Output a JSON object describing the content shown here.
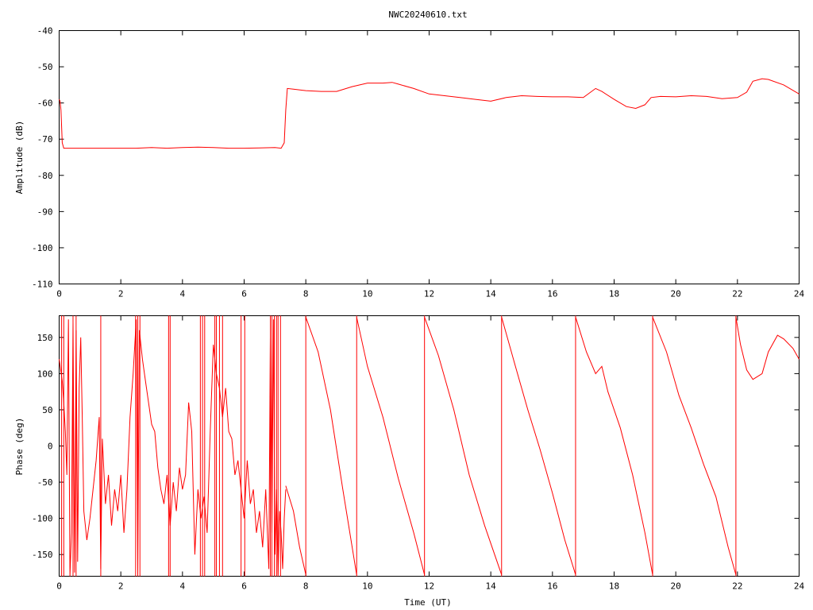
{
  "title": "NWC20240610.txt",
  "colors": {
    "trace": "#ff0000",
    "frame": "#000000",
    "background": "#ffffff"
  },
  "chart_data": [
    {
      "type": "line",
      "title": "NWC20240610.txt",
      "xlabel": "",
      "ylabel": "Amplitude (dB)",
      "xlim": [
        0,
        24
      ],
      "ylim": [
        -110,
        -40
      ],
      "xticks": [
        "0",
        "2",
        "4",
        "6",
        "8",
        "10",
        "12",
        "14",
        "16",
        "18",
        "20",
        "22",
        "24"
      ],
      "yticks": [
        "-40",
        "-50",
        "-60",
        "-70",
        "-80",
        "-90",
        "-100",
        "-110"
      ],
      "grid": false,
      "series": [
        {
          "x": [
            0,
            0.03,
            0.06,
            0.1,
            0.15,
            0.5,
            1,
            1.5,
            2,
            2.5,
            3,
            3.5,
            4,
            4.5,
            5,
            5.5,
            6,
            6.5,
            7,
            7.2,
            7.3,
            7.35,
            7.4,
            7.6,
            8,
            8.5,
            9,
            9.5,
            10,
            10.5,
            10.8,
            11,
            11.5,
            12,
            12.5,
            13,
            13.5,
            14,
            14.5,
            15,
            15.5,
            16,
            16.5,
            17,
            17.4,
            17.6,
            18,
            18.4,
            18.7,
            19,
            19.2,
            19.5,
            20,
            20.5,
            21,
            21.5,
            22,
            22.3,
            22.5,
            22.8,
            23,
            23.5,
            24
          ],
          "values": [
            -59,
            -59.5,
            -62,
            -71,
            -72.5,
            -72.5,
            -72.5,
            -72.5,
            -72.5,
            -72.5,
            -72.3,
            -72.5,
            -72.3,
            -72.2,
            -72.3,
            -72.5,
            -72.5,
            -72.4,
            -72.3,
            -72.5,
            -71,
            -62,
            -56,
            -56.2,
            -56.6,
            -56.8,
            -56.8,
            -55.5,
            -54.5,
            -54.5,
            -54.3,
            -54.8,
            -56,
            -57.5,
            -58,
            -58.5,
            -59,
            -59.5,
            -58.5,
            -58,
            -58.2,
            -58.3,
            -58.3,
            -58.5,
            -56,
            -56.8,
            -59,
            -61,
            -61.5,
            -60.5,
            -58.5,
            -58.2,
            -58.3,
            -58,
            -58.2,
            -58.8,
            -58.5,
            -57,
            -54,
            -53.3,
            -53.5,
            -55,
            -57.5
          ]
        }
      ]
    },
    {
      "type": "line",
      "title": "",
      "xlabel": "Time (UT)",
      "ylabel": "Phase (deg)",
      "xlim": [
        0,
        24
      ],
      "ylim": [
        -180,
        180
      ],
      "xticks": [
        "0",
        "2",
        "4",
        "6",
        "8",
        "10",
        "12",
        "14",
        "16",
        "18",
        "20",
        "22",
        "24"
      ],
      "yticks": [
        "150",
        "100",
        "50",
        "0",
        "-50",
        "-100",
        "-150"
      ],
      "grid": false,
      "series": [
        {
          "x": [
            0,
            0.1,
            0.15,
            0.2,
            0.25,
            0.3,
            0.35,
            0.4,
            0.45,
            0.5,
            0.55,
            0.6,
            0.65,
            0.7,
            0.75,
            0.8,
            0.9,
            1,
            1.1,
            1.2,
            1.3,
            1.35,
            1.4,
            1.5,
            1.6,
            1.7,
            1.8,
            1.9,
            2,
            2.1,
            2.2,
            2.3,
            2.4,
            2.5,
            2.55,
            2.6,
            2.7,
            2.8,
            2.9,
            3,
            3.1,
            3.2,
            3.3,
            3.4,
            3.5,
            3.6,
            3.7,
            3.8,
            3.9,
            4,
            4.1,
            4.2,
            4.3,
            4.4,
            4.5,
            4.6,
            4.7,
            4.8,
            4.9,
            5,
            5.1,
            5.2,
            5.3,
            5.4,
            5.5,
            5.6,
            5.7,
            5.8,
            5.9,
            6,
            6.1,
            6.2,
            6.3,
            6.4,
            6.5,
            6.6,
            6.7,
            6.8,
            6.85,
            6.9,
            6.95,
            7,
            7.05,
            7.1,
            7.15,
            7.2,
            7.25,
            7.3,
            7.35
          ],
          "values": [
            120,
            90,
            60,
            20,
            -40,
            175,
            -180,
            -120,
            170,
            -175,
            160,
            -160,
            80,
            150,
            40,
            -90,
            -130,
            -100,
            -60,
            -20,
            40,
            -170,
            10,
            -80,
            -40,
            -110,
            -60,
            -90,
            -40,
            -120,
            -60,
            40,
            100,
            175,
            -178,
            160,
            120,
            90,
            60,
            30,
            20,
            -30,
            -60,
            -80,
            -40,
            -110,
            -50,
            -90,
            -30,
            -60,
            -40,
            60,
            20,
            -150,
            -60,
            -100,
            -70,
            -120,
            20,
            140,
            100,
            80,
            40,
            80,
            20,
            10,
            -40,
            -20,
            -60,
            -100,
            -20,
            -80,
            -60,
            -120,
            -90,
            -140,
            -60,
            -170,
            150,
            -120,
            175,
            -150,
            -60,
            -178,
            -90,
            -120,
            -170,
            -100,
            -60
          ]
        },
        {
          "x": [
            7.35,
            7.6,
            7.8,
            8.0
          ],
          "values": [
            -55,
            -90,
            -140,
            -178
          ]
        },
        {
          "x": [
            8.0,
            8.4,
            8.8,
            9.2,
            9.65
          ],
          "values": [
            178,
            130,
            50,
            -60,
            -178
          ]
        },
        {
          "x": [
            9.65,
            10,
            10.5,
            11,
            11.5,
            11.85
          ],
          "values": [
            178,
            110,
            40,
            -45,
            -120,
            -178
          ]
        },
        {
          "x": [
            11.85,
            12.3,
            12.8,
            13.3,
            13.8,
            14.35
          ],
          "values": [
            178,
            125,
            50,
            -40,
            -110,
            -178
          ]
        },
        {
          "x": [
            14.35,
            14.8,
            15.2,
            15.6,
            16.0,
            16.4,
            16.75
          ],
          "values": [
            178,
            110,
            50,
            -5,
            -65,
            -130,
            -178
          ]
        },
        {
          "x": [
            16.75,
            17.1,
            17.4,
            17.6,
            17.8,
            18.2,
            18.6,
            19.0,
            19.25
          ],
          "values": [
            178,
            130,
            100,
            110,
            75,
            25,
            -40,
            -120,
            -178
          ]
        },
        {
          "x": [
            19.25,
            19.7,
            20.1,
            20.5,
            20.9,
            21.3,
            21.7,
            21.95
          ],
          "values": [
            178,
            130,
            70,
            25,
            -25,
            -70,
            -140,
            -178
          ]
        },
        {
          "x": [
            21.95,
            22.1,
            22.3,
            22.5,
            22.8,
            23.0,
            23.3,
            23.5,
            23.8,
            24
          ],
          "values": [
            178,
            140,
            105,
            92,
            100,
            130,
            153,
            148,
            135,
            120
          ]
        }
      ],
      "wrap_lines_x": [
        0.08,
        0.15,
        0.45,
        0.55,
        1.35,
        2.48,
        2.55,
        2.62,
        3.55,
        3.6,
        4.58,
        4.65,
        4.72,
        5.05,
        5.1,
        5.2,
        5.3,
        5.9,
        6.02,
        6.85,
        6.9,
        6.98,
        7.05,
        7.1,
        7.18,
        8.0,
        9.65,
        11.85,
        14.35,
        16.75,
        19.25,
        21.95
      ]
    }
  ]
}
